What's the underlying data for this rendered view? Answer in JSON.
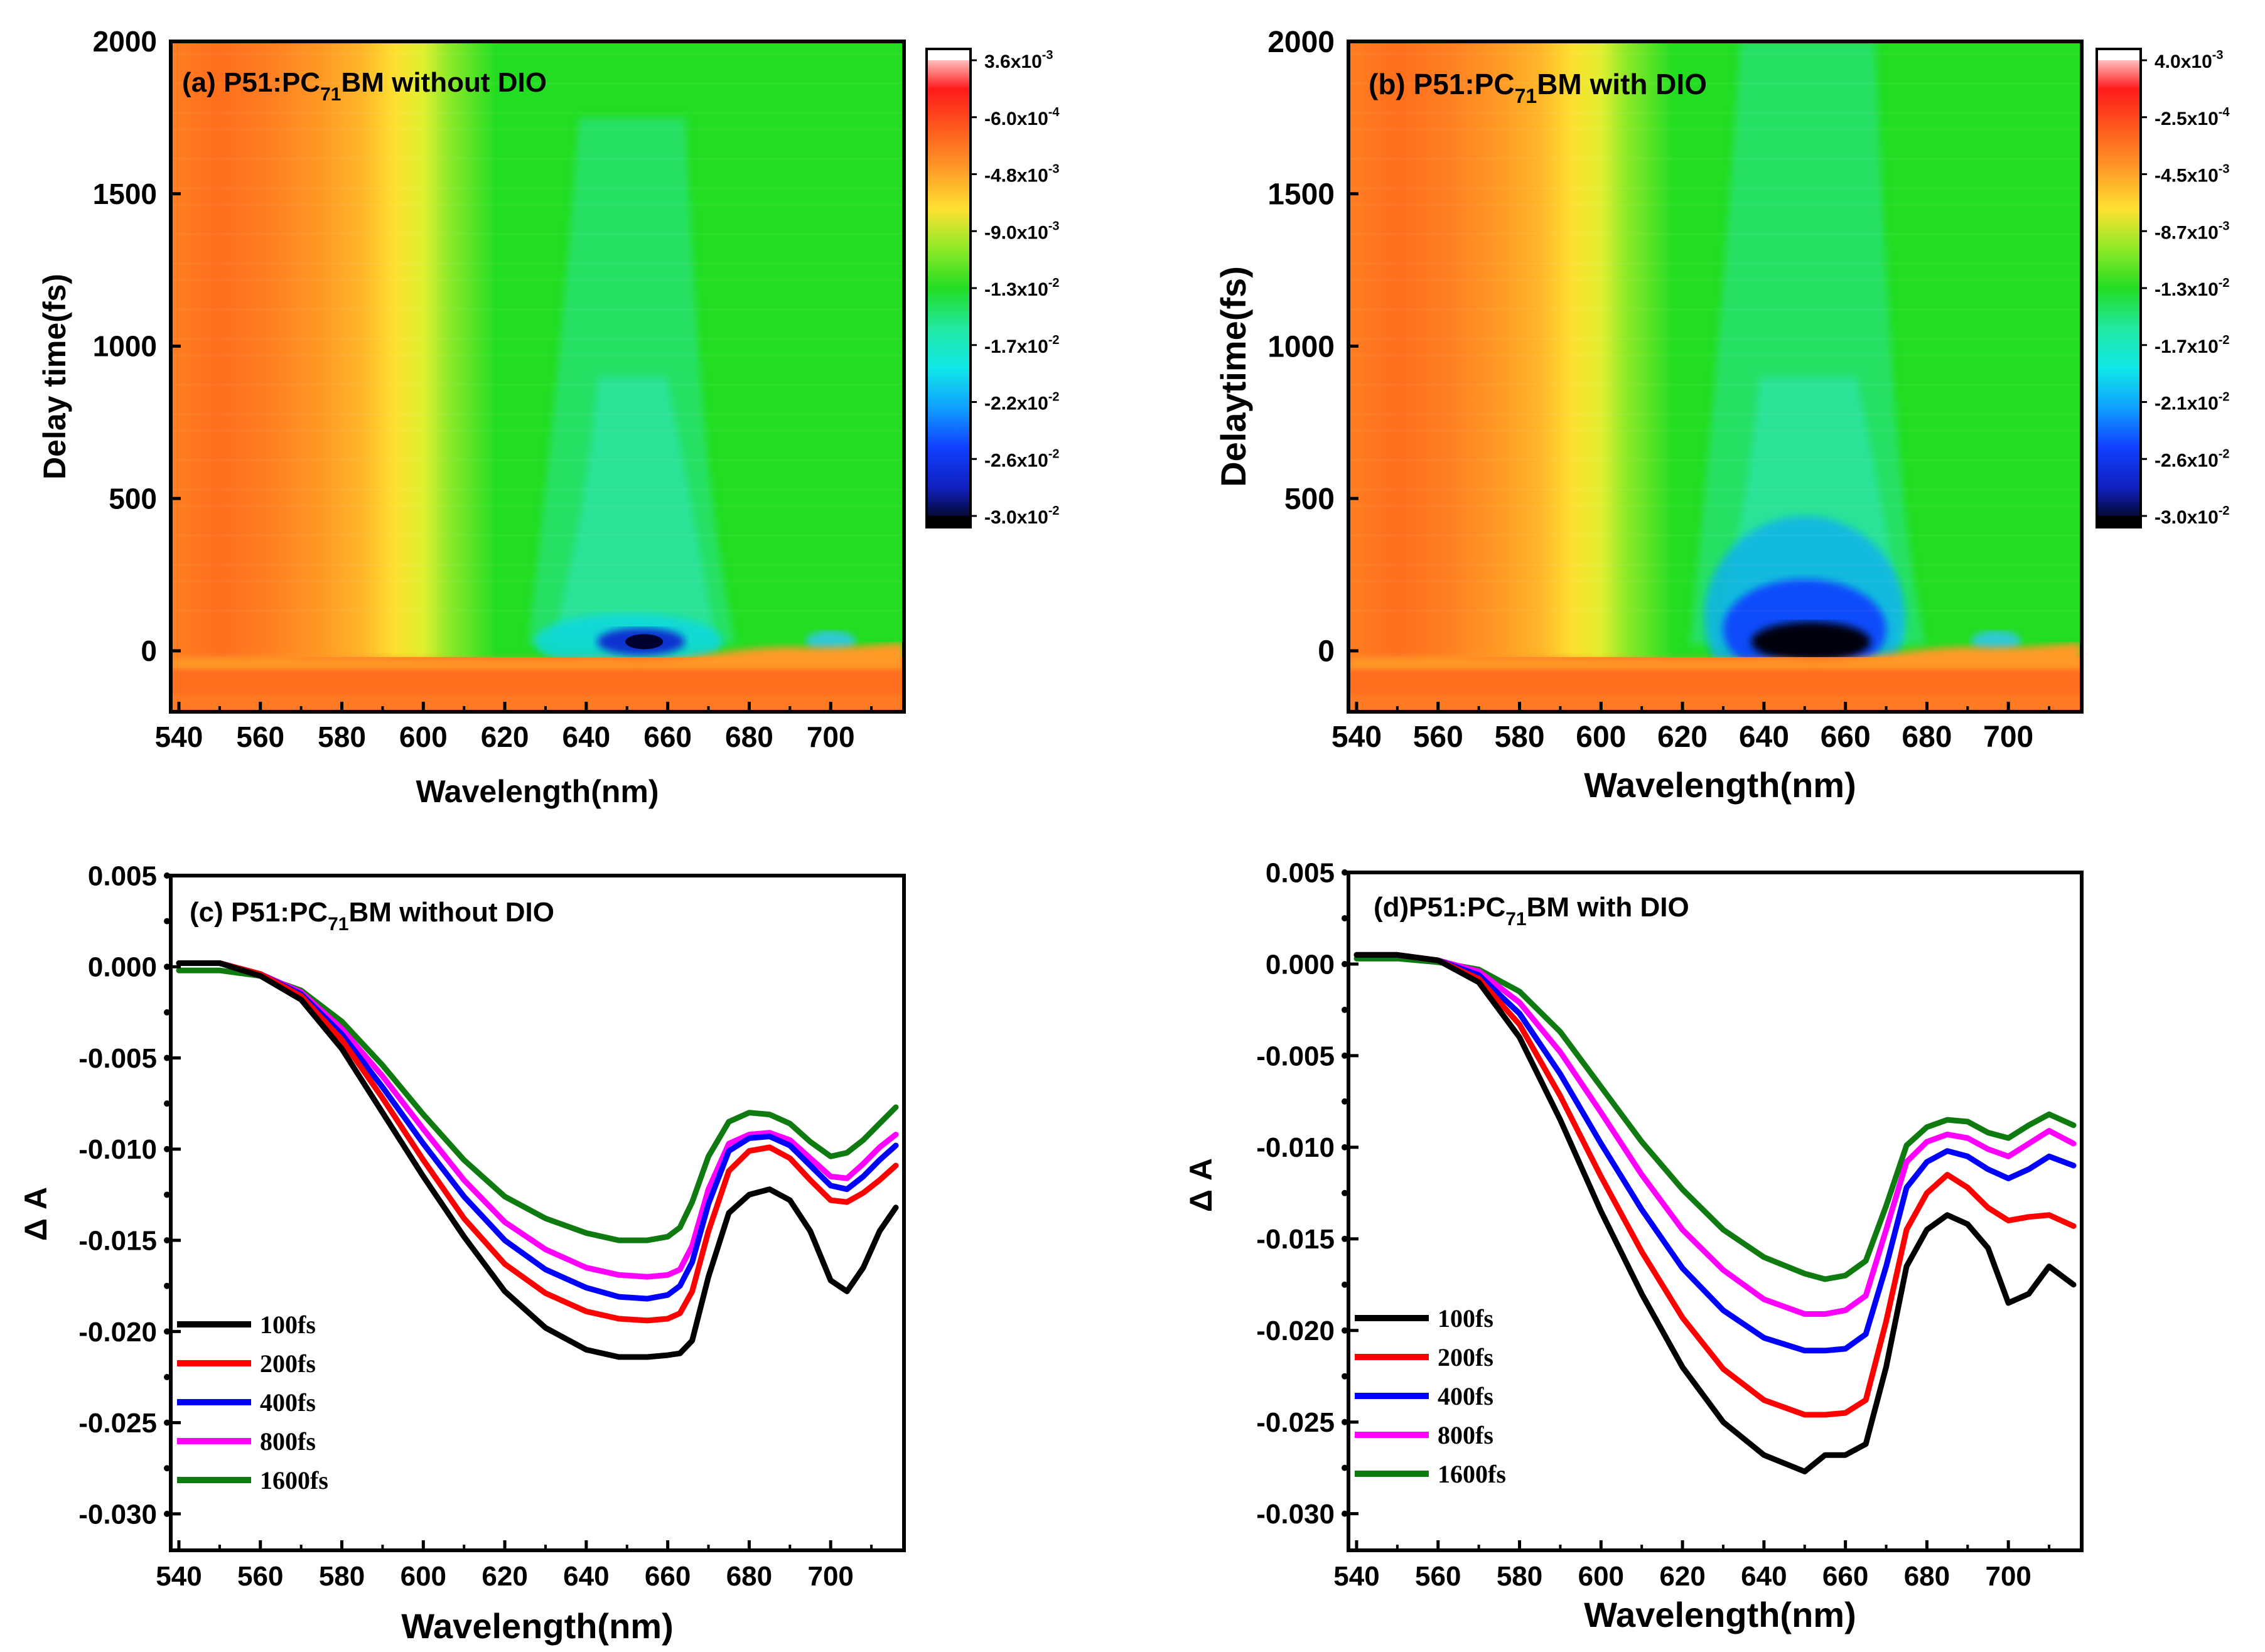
{
  "chart_data": [
    {
      "id": "a",
      "type": "heatmap",
      "title": "(a) P51:PC",
      "title_sub": "71",
      "title_rest": "BM without DIO",
      "xlabel": "Wavelength(nm)",
      "ylabel": "Delay time(fs)",
      "xlim": [
        538,
        718
      ],
      "ylim": [
        -200,
        2000
      ],
      "xticks": [
        "540",
        "560",
        "580",
        "600",
        "620",
        "640",
        "660",
        "680",
        "700"
      ],
      "xtick_values": [
        540,
        560,
        580,
        600,
        620,
        640,
        660,
        680,
        700
      ],
      "yticks": [
        "2000",
        "1500",
        "1000",
        "500",
        "0"
      ],
      "ytick_values": [
        2000,
        1500,
        1000,
        500,
        0
      ],
      "colorbar": {
        "labels": [
          {
            "m": "3.6x10",
            "e": "-3"
          },
          {
            "m": "-6.0x10",
            "e": "-4"
          },
          {
            "m": "-4.8x10",
            "e": "-3"
          },
          {
            "m": "-9.0x10",
            "e": "-3"
          },
          {
            "m": "-1.3x10",
            "e": "-2"
          },
          {
            "m": "-1.7x10",
            "e": "-2"
          },
          {
            "m": "-2.2x10",
            "e": "-2"
          },
          {
            "m": "-2.6x10",
            "e": "-2"
          },
          {
            "m": "-3.0x10",
            "e": "-2"
          }
        ],
        "colors": [
          "#ffffff",
          "#ff1a1a",
          "#ff5a1e",
          "#ff9a28",
          "#ffe030",
          "#90ea28",
          "#22dd22",
          "#22e8a0",
          "#10e8e8",
          "#10a0ff",
          "#1040ff",
          "#1020c0",
          "#000000"
        ]
      },
      "features": {
        "orange_until": 585,
        "yellow_center": 598,
        "green_from": 612,
        "cyan_band_nm": [
          632,
          672
        ],
        "cyan_band_top_fs": 1750,
        "deep_spot_nm": 655,
        "deep_spot_fs": 30,
        "side_spot_nm": 700
      }
    },
    {
      "id": "b",
      "type": "heatmap",
      "title": "(b) P51:PC",
      "title_sub": "71",
      "title_rest": "BM with DIO",
      "xlabel": "Wavelength(nm)",
      "ylabel": "Delaytime(fs)",
      "xlim": [
        538,
        718
      ],
      "ylim": [
        -200,
        2000
      ],
      "xticks": [
        "540",
        "560",
        "580",
        "600",
        "620",
        "640",
        "660",
        "680",
        "700"
      ],
      "xtick_values": [
        540,
        560,
        580,
        600,
        620,
        640,
        660,
        680,
        700
      ],
      "yticks": [
        "2000",
        "1500",
        "1000",
        "500",
        "0"
      ],
      "ytick_values": [
        2000,
        1500,
        1000,
        500,
        0
      ],
      "colorbar": {
        "labels": [
          {
            "m": "4.0x10",
            "e": "-3"
          },
          {
            "m": "-2.5x10",
            "e": "-4"
          },
          {
            "m": "-4.5x10",
            "e": "-3"
          },
          {
            "m": "-8.7x10",
            "e": "-3"
          },
          {
            "m": "-1.3x10",
            "e": "-2"
          },
          {
            "m": "-1.7x10",
            "e": "-2"
          },
          {
            "m": "-2.1x10",
            "e": "-2"
          },
          {
            "m": "-2.6x10",
            "e": "-2"
          },
          {
            "m": "-3.0x10",
            "e": "-2"
          }
        ],
        "colors": [
          "#ffffff",
          "#ff1a1a",
          "#ff5a1e",
          "#ff9a28",
          "#ffe030",
          "#90ea28",
          "#22dd22",
          "#22e8a0",
          "#10e8e8",
          "#10a0ff",
          "#1040ff",
          "#1020c0",
          "#000000"
        ]
      },
      "features": {
        "orange_until": 585,
        "yellow_center": 598,
        "green_from": 612,
        "cyan_band_nm": [
          628,
          675
        ],
        "cyan_band_top_fs": 2000,
        "deep_spot_nm": 650,
        "deep_spot_fs": 50,
        "side_spot_nm": 697
      }
    },
    {
      "id": "c",
      "type": "line",
      "title": "(c) P51:PC",
      "title_sub": "71",
      "title_rest": "BM without DIO",
      "xlabel": "Wavelength(nm)",
      "ylabel": "Δ A",
      "xlim": [
        538,
        718
      ],
      "ylim": [
        -0.032,
        0.005
      ],
      "xticks": [
        "540",
        "560",
        "580",
        "600",
        "620",
        "640",
        "660",
        "680",
        "700"
      ],
      "xtick_values": [
        540,
        560,
        580,
        600,
        620,
        640,
        660,
        680,
        700
      ],
      "yticks": [
        "0.005",
        "0.000",
        "-0.005",
        "-0.010",
        "-0.015",
        "-0.020",
        "-0.025",
        "-0.030"
      ],
      "ytick_values": [
        0.005,
        0.0,
        -0.005,
        -0.01,
        -0.015,
        -0.02,
        -0.025,
        -0.03
      ],
      "series": [
        {
          "name": "100fs",
          "color": "#000000",
          "x": [
            540,
            550,
            560,
            570,
            580,
            590,
            600,
            610,
            620,
            630,
            640,
            648,
            655,
            660,
            663,
            666,
            670,
            675,
            680,
            685,
            690,
            695,
            700,
            704,
            708,
            712,
            716
          ],
          "y": [
            0.0002,
            0.0002,
            -0.0005,
            -0.0018,
            -0.0045,
            -0.008,
            -0.0115,
            -0.0148,
            -0.0178,
            -0.0198,
            -0.021,
            -0.0214,
            -0.0214,
            -0.0213,
            -0.0212,
            -0.0205,
            -0.017,
            -0.0135,
            -0.0125,
            -0.0122,
            -0.0128,
            -0.0145,
            -0.0172,
            -0.0178,
            -0.0165,
            -0.0145,
            -0.0132
          ]
        },
        {
          "name": "200fs",
          "color": "#ff0000",
          "x": [
            540,
            550,
            560,
            570,
            580,
            590,
            600,
            610,
            620,
            630,
            640,
            648,
            655,
            660,
            663,
            666,
            670,
            675,
            680,
            685,
            690,
            695,
            700,
            704,
            708,
            712,
            716
          ],
          "y": [
            0.0002,
            0.0002,
            -0.0004,
            -0.0016,
            -0.004,
            -0.0072,
            -0.0106,
            -0.0138,
            -0.0163,
            -0.0179,
            -0.0189,
            -0.0193,
            -0.0194,
            -0.0193,
            -0.019,
            -0.0178,
            -0.0145,
            -0.0112,
            -0.0101,
            -0.0099,
            -0.0105,
            -0.0117,
            -0.0128,
            -0.0129,
            -0.0124,
            -0.0117,
            -0.0109
          ]
        },
        {
          "name": "400fs",
          "color": "#0000ff",
          "x": [
            540,
            550,
            560,
            570,
            580,
            590,
            600,
            610,
            620,
            630,
            640,
            648,
            655,
            660,
            663,
            666,
            670,
            675,
            680,
            685,
            690,
            695,
            700,
            704,
            708,
            712,
            716
          ],
          "y": [
            0.0002,
            0.0002,
            -0.0004,
            -0.0015,
            -0.0037,
            -0.0066,
            -0.0097,
            -0.0126,
            -0.015,
            -0.0166,
            -0.0176,
            -0.0181,
            -0.0182,
            -0.018,
            -0.0175,
            -0.0162,
            -0.013,
            -0.0101,
            -0.0094,
            -0.0093,
            -0.0098,
            -0.0109,
            -0.012,
            -0.0122,
            -0.0115,
            -0.0106,
            -0.0098
          ]
        },
        {
          "name": "800fs",
          "color": "#ff00ff",
          "x": [
            540,
            550,
            560,
            570,
            580,
            590,
            600,
            610,
            620,
            630,
            640,
            648,
            655,
            660,
            663,
            666,
            670,
            675,
            680,
            685,
            690,
            695,
            700,
            704,
            708,
            712,
            716
          ],
          "y": [
            0.0002,
            0.0002,
            -0.0004,
            -0.0014,
            -0.0034,
            -0.006,
            -0.0089,
            -0.0117,
            -0.014,
            -0.0155,
            -0.0165,
            -0.0169,
            -0.017,
            -0.0169,
            -0.0166,
            -0.0153,
            -0.0122,
            -0.0097,
            -0.0092,
            -0.0091,
            -0.0095,
            -0.0105,
            -0.0115,
            -0.0116,
            -0.0108,
            -0.0099,
            -0.0092
          ]
        },
        {
          "name": "1600fs",
          "color": "#0f7a0f",
          "x": [
            540,
            550,
            560,
            570,
            580,
            590,
            600,
            610,
            620,
            630,
            640,
            648,
            655,
            660,
            663,
            666,
            670,
            675,
            680,
            685,
            690,
            695,
            700,
            704,
            708,
            712,
            716
          ],
          "y": [
            -0.0002,
            -0.0002,
            -0.0005,
            -0.0013,
            -0.003,
            -0.0054,
            -0.0081,
            -0.0106,
            -0.0126,
            -0.0138,
            -0.0146,
            -0.015,
            -0.015,
            -0.0148,
            -0.0143,
            -0.0129,
            -0.0104,
            -0.0085,
            -0.008,
            -0.0081,
            -0.0086,
            -0.0096,
            -0.0104,
            -0.0102,
            -0.0095,
            -0.0086,
            -0.0077
          ]
        }
      ]
    },
    {
      "id": "d",
      "type": "line",
      "title": "(d)P51:PC",
      "title_sub": "71",
      "title_rest": "BM with DIO",
      "xlabel": "Wavelength(nm)",
      "ylabel": "Δ A",
      "xlim": [
        538,
        718
      ],
      "ylim": [
        -0.032,
        0.005
      ],
      "xticks": [
        "540",
        "560",
        "580",
        "600",
        "620",
        "640",
        "660",
        "680",
        "700"
      ],
      "xtick_values": [
        540,
        560,
        580,
        600,
        620,
        640,
        660,
        680,
        700
      ],
      "yticks": [
        "0.005",
        "0.000",
        "-0.005",
        "-0.010",
        "-0.015",
        "-0.020",
        "-0.025",
        "-0.030"
      ],
      "ytick_values": [
        0.005,
        0.0,
        -0.005,
        -0.01,
        -0.015,
        -0.02,
        -0.025,
        -0.03
      ],
      "series": [
        {
          "name": "100fs",
          "color": "#000000",
          "x": [
            540,
            550,
            560,
            570,
            580,
            590,
            600,
            610,
            620,
            630,
            640,
            650,
            655,
            660,
            665,
            670,
            675,
            680,
            685,
            690,
            695,
            700,
            705,
            710,
            716
          ],
          "y": [
            0.0005,
            0.0005,
            0.0002,
            -0.001,
            -0.004,
            -0.0085,
            -0.0135,
            -0.018,
            -0.022,
            -0.025,
            -0.0268,
            -0.0277,
            -0.0268,
            -0.0268,
            -0.0262,
            -0.022,
            -0.0165,
            -0.0145,
            -0.0137,
            -0.0142,
            -0.0155,
            -0.0185,
            -0.018,
            -0.0165,
            -0.0175
          ]
        },
        {
          "name": "200fs",
          "color": "#ff0000",
          "x": [
            540,
            550,
            560,
            570,
            580,
            590,
            600,
            610,
            620,
            630,
            640,
            650,
            655,
            660,
            665,
            670,
            675,
            680,
            685,
            690,
            695,
            700,
            705,
            710,
            716
          ],
          "y": [
            0.0005,
            0.0005,
            0.0002,
            -0.0008,
            -0.0033,
            -0.0072,
            -0.0116,
            -0.0157,
            -0.0193,
            -0.0221,
            -0.0238,
            -0.0246,
            -0.0246,
            -0.0245,
            -0.0238,
            -0.0195,
            -0.0145,
            -0.0125,
            -0.0115,
            -0.0122,
            -0.0133,
            -0.014,
            -0.0138,
            -0.0137,
            -0.0143
          ]
        },
        {
          "name": "400fs",
          "color": "#0000ff",
          "x": [
            540,
            550,
            560,
            570,
            580,
            590,
            600,
            610,
            620,
            630,
            640,
            650,
            655,
            660,
            665,
            670,
            675,
            680,
            685,
            690,
            695,
            700,
            705,
            710,
            716
          ],
          "y": [
            0.0005,
            0.0005,
            0.0002,
            -0.0006,
            -0.0027,
            -0.006,
            -0.0098,
            -0.0134,
            -0.0166,
            -0.0189,
            -0.0204,
            -0.0211,
            -0.0211,
            -0.021,
            -0.0202,
            -0.0165,
            -0.0122,
            -0.0108,
            -0.0102,
            -0.0105,
            -0.0112,
            -0.0117,
            -0.0112,
            -0.0105,
            -0.011
          ]
        },
        {
          "name": "800fs",
          "color": "#ff00ff",
          "x": [
            540,
            550,
            560,
            570,
            580,
            590,
            600,
            610,
            620,
            630,
            640,
            650,
            655,
            660,
            665,
            670,
            675,
            680,
            685,
            690,
            695,
            700,
            705,
            710,
            716
          ],
          "y": [
            0.0005,
            0.0005,
            0.0002,
            -0.0004,
            -0.0021,
            -0.0048,
            -0.0081,
            -0.0115,
            -0.0145,
            -0.0167,
            -0.0183,
            -0.0191,
            -0.0191,
            -0.0189,
            -0.0181,
            -0.0145,
            -0.0108,
            -0.0097,
            -0.0093,
            -0.0095,
            -0.0101,
            -0.0105,
            -0.0098,
            -0.0091,
            -0.0098
          ]
        },
        {
          "name": "1600fs",
          "color": "#0f7a0f",
          "x": [
            540,
            550,
            560,
            570,
            580,
            590,
            600,
            610,
            620,
            630,
            640,
            650,
            655,
            660,
            665,
            670,
            675,
            680,
            685,
            690,
            695,
            700,
            705,
            710,
            716
          ],
          "y": [
            0.0003,
            0.0003,
            0.0001,
            -0.0003,
            -0.0015,
            -0.0037,
            -0.0067,
            -0.0097,
            -0.0123,
            -0.0145,
            -0.016,
            -0.0169,
            -0.0172,
            -0.017,
            -0.0162,
            -0.0132,
            -0.0099,
            -0.0089,
            -0.0085,
            -0.0086,
            -0.0092,
            -0.0095,
            -0.0088,
            -0.0082,
            -0.0088
          ]
        }
      ]
    }
  ]
}
